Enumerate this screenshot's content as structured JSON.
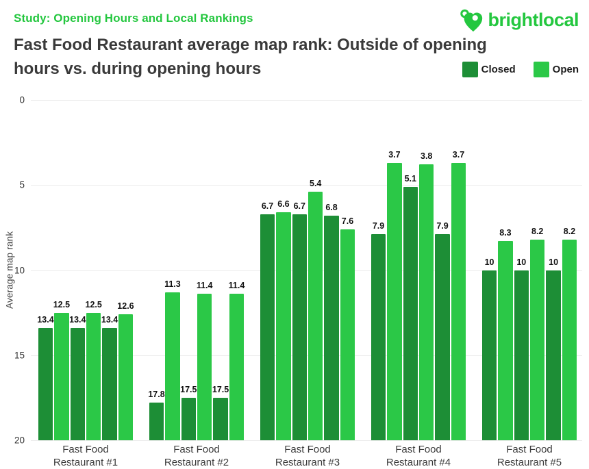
{
  "header": {
    "study_label": "Study: Opening Hours and Local Rankings",
    "title": "Fast Food Restaurant average map rank: Outside of opening hours vs. during opening hours",
    "title_lines": [
      "Fast Food Restaurant average map rank: Outside of opening",
      "hours vs. during opening hours"
    ],
    "logo_text": "brightlocal"
  },
  "colors": {
    "brand_green": "#24c73f",
    "open_green": "#2bc847",
    "closed_green": "#1d8e36",
    "title_gray": "#3a3a3a",
    "grid_gray": "#ececec"
  },
  "chart_data": {
    "type": "bar",
    "title": "Fast Food Restaurant average map rank: Outside of opening hours vs. during opening hours",
    "xlabel": "",
    "ylabel": "Average map rank",
    "ylim": [
      0,
      20
    ],
    "y_ticks": [
      0,
      5,
      10,
      15,
      20
    ],
    "y_inverted": true,
    "grid": true,
    "legend_position": "top-right",
    "legend": [
      {
        "name": "Closed",
        "color": "#1d8e36"
      },
      {
        "name": "Open",
        "color": "#2bc847"
      }
    ],
    "categories": [
      "Fast Food Restaurant #1",
      "Fast Food Restaurant #2",
      "Fast Food Restaurant #3",
      "Fast Food Restaurant #4",
      "Fast Food Restaurant #5"
    ],
    "groups": [
      {
        "category_lines": [
          "Fast Food",
          "Restaurant #1"
        ],
        "bars": [
          {
            "series": "Closed",
            "value": 13.4
          },
          {
            "series": "Open",
            "value": 12.5
          },
          {
            "series": "Closed",
            "value": 13.4
          },
          {
            "series": "Open",
            "value": 12.5
          },
          {
            "series": "Closed",
            "value": 13.4
          },
          {
            "series": "Open",
            "value": 12.6
          }
        ]
      },
      {
        "category_lines": [
          "Fast Food",
          "Restaurant #2"
        ],
        "bars": [
          {
            "series": "Closed",
            "value": 17.8
          },
          {
            "series": "Open",
            "value": 11.3
          },
          {
            "series": "Closed",
            "value": 17.5
          },
          {
            "series": "Open",
            "value": 11.4
          },
          {
            "series": "Closed",
            "value": 17.5
          },
          {
            "series": "Open",
            "value": 11.4
          }
        ]
      },
      {
        "category_lines": [
          "Fast Food",
          "Restaurant #3"
        ],
        "bars": [
          {
            "series": "Closed",
            "value": 6.7
          },
          {
            "series": "Open",
            "value": 6.6
          },
          {
            "series": "Closed",
            "value": 6.7
          },
          {
            "series": "Open",
            "value": 5.4
          },
          {
            "series": "Closed",
            "value": 6.8
          },
          {
            "series": "Open",
            "value": 7.6
          }
        ]
      },
      {
        "category_lines": [
          "Fast Food",
          "Restaurant #4"
        ],
        "bars": [
          {
            "series": "Closed",
            "value": 7.9
          },
          {
            "series": "Open",
            "value": 3.7
          },
          {
            "series": "Closed",
            "value": 5.1
          },
          {
            "series": "Open",
            "value": 3.8
          },
          {
            "series": "Closed",
            "value": 7.9
          },
          {
            "series": "Open",
            "value": 3.7
          }
        ]
      },
      {
        "category_lines": [
          "Fast Food",
          "Restaurant #5"
        ],
        "bars": [
          {
            "series": "Closed",
            "value": 10
          },
          {
            "series": "Open",
            "value": 8.3
          },
          {
            "series": "Closed",
            "value": 10
          },
          {
            "series": "Open",
            "value": 8.2
          },
          {
            "series": "Closed",
            "value": 10
          },
          {
            "series": "Open",
            "value": 8.2
          }
        ]
      }
    ]
  }
}
